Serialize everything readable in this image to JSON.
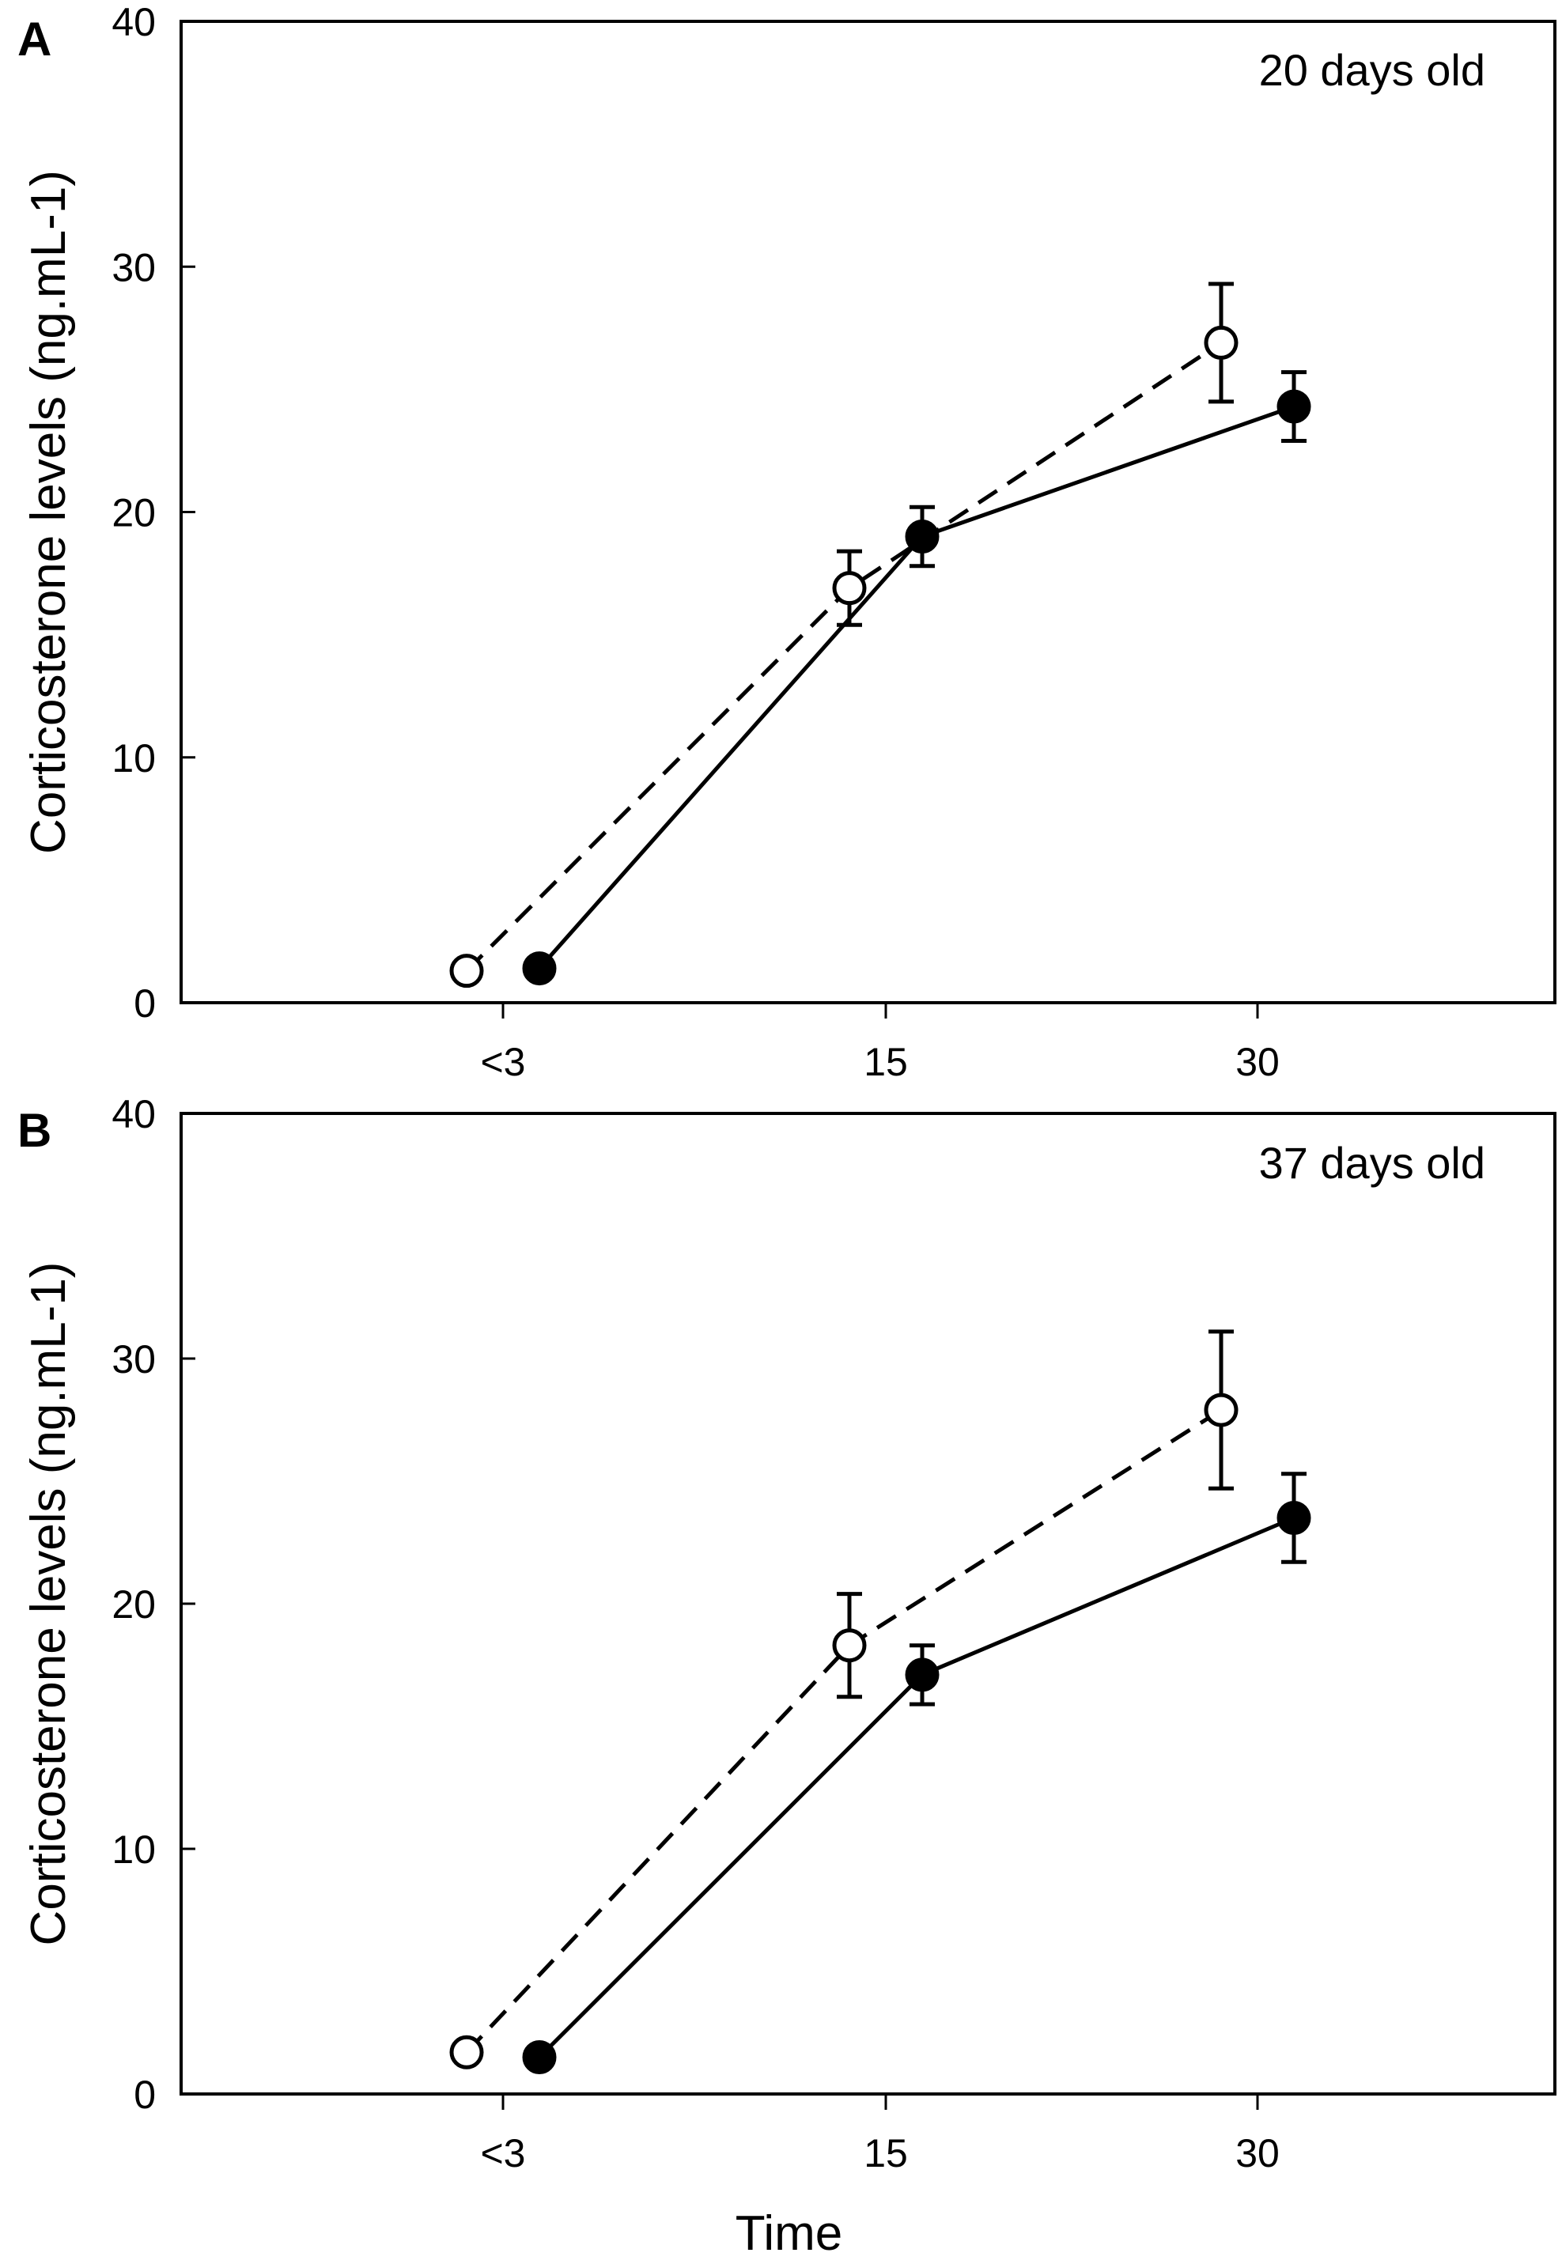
{
  "chart_data": [
    {
      "type": "line",
      "panel_label": "A",
      "annotation": "20 days old",
      "xlabel": "",
      "ylabel": "Corticosterone levels (ng.mL-1)",
      "categories": [
        "<3",
        "15",
        "30"
      ],
      "ylim": [
        0,
        40
      ],
      "yticks": [
        0,
        10,
        20,
        30,
        40
      ],
      "series": [
        {
          "name": "open circles",
          "style": "dashed",
          "marker": "open",
          "values": [
            1.3,
            16.9,
            26.9
          ],
          "errors": [
            0,
            1.5,
            2.4
          ]
        },
        {
          "name": "filled circles",
          "style": "solid",
          "marker": "filled",
          "values": [
            1.4,
            19.0,
            24.3
          ],
          "errors": [
            0,
            1.2,
            1.4
          ]
        }
      ]
    },
    {
      "type": "line",
      "panel_label": "B",
      "annotation": "37 days old",
      "xlabel": "Time",
      "ylabel": "Corticosterone levels (ng.mL-1)",
      "categories": [
        "<3",
        "15",
        "30"
      ],
      "ylim": [
        0,
        40
      ],
      "yticks": [
        0,
        10,
        20,
        30,
        40
      ],
      "series": [
        {
          "name": "open circles",
          "style": "dashed",
          "marker": "open",
          "values": [
            1.7,
            18.3,
            27.9
          ],
          "errors": [
            0,
            2.1,
            3.2
          ]
        },
        {
          "name": "filled circles",
          "style": "solid",
          "marker": "filled",
          "values": [
            1.5,
            17.1,
            23.5
          ],
          "errors": [
            0,
            1.2,
            1.8
          ]
        }
      ]
    }
  ]
}
